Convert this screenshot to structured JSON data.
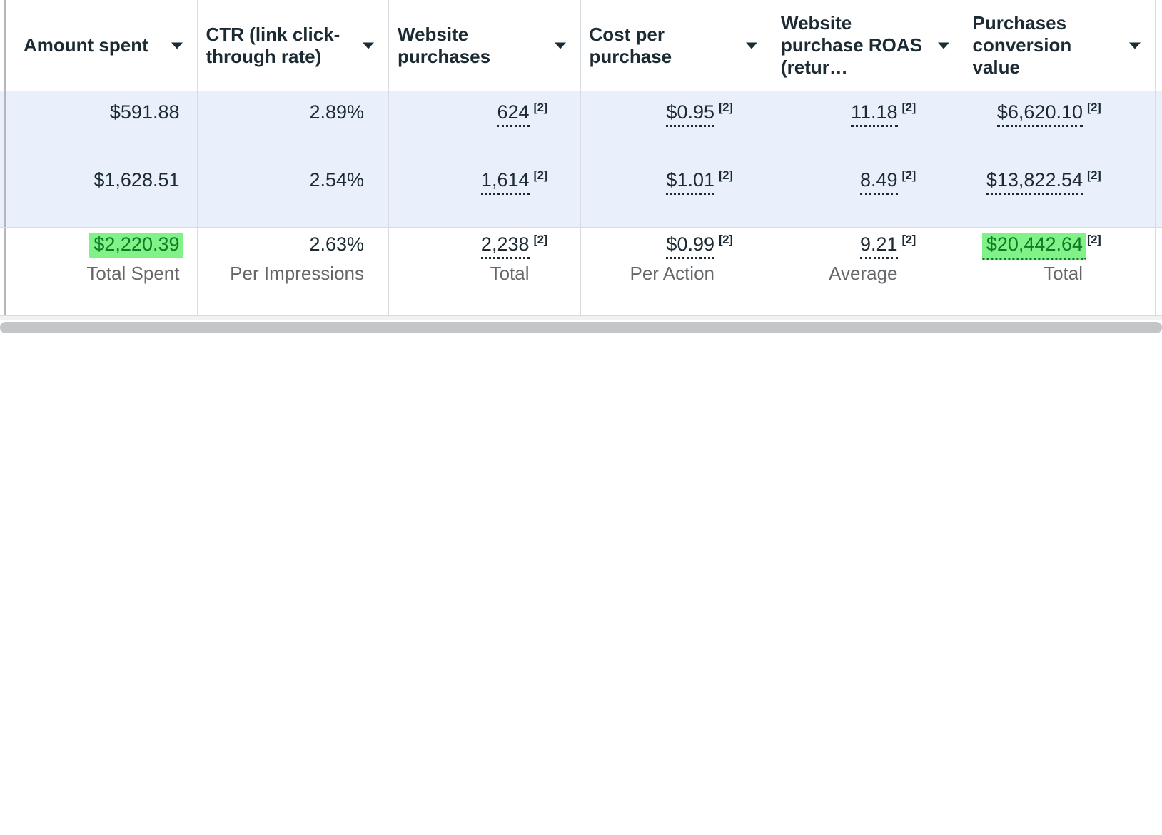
{
  "table": {
    "columns": [
      {
        "label": "Amount spent",
        "total_value": "$2,220.39",
        "total_label": "Total Spent",
        "highlighted_total": true
      },
      {
        "label": "CTR (link click-through rate)",
        "total_value": "2.63%",
        "total_label": "Per Impressions",
        "highlighted_total": false
      },
      {
        "label": "Website purchases",
        "footnote": "[2]",
        "total_value": "2,238",
        "total_label": "Total",
        "highlighted_total": false
      },
      {
        "label": "Cost per purchase",
        "footnote": "[2]",
        "total_value": "$0.99",
        "total_label": "Per Action",
        "highlighted_total": false
      },
      {
        "label": "Website purchase ROAS (retur…",
        "footnote": "[2]",
        "total_value": "9.21",
        "total_label": "Average",
        "highlighted_total": false
      },
      {
        "label": "Purchases conversion value",
        "footnote": "[2]",
        "total_value": "$20,442.64",
        "total_label": "Total",
        "highlighted_total": true
      }
    ],
    "rows": [
      {
        "cells": [
          "$591.88",
          "2.89%",
          "624",
          "$0.95",
          "11.18",
          "$6,620.10"
        ]
      },
      {
        "cells": [
          "$1,628.51",
          "2.54%",
          "1,614",
          "$1.01",
          "8.49",
          "$13,822.54"
        ]
      }
    ]
  },
  "colors": {
    "selected_row_background": "#e9f0fc",
    "highlight_green_background": "#81f287",
    "highlight_green_text": "#0f7b26",
    "header_text": "#1c2b33",
    "value_text": "#1c2b33",
    "summary_label_text": "#65676b",
    "cell_border": "#d8dbe0",
    "pane_divider": "#b4b6ba",
    "scrollbar_thumb": "#c3c5c9"
  }
}
